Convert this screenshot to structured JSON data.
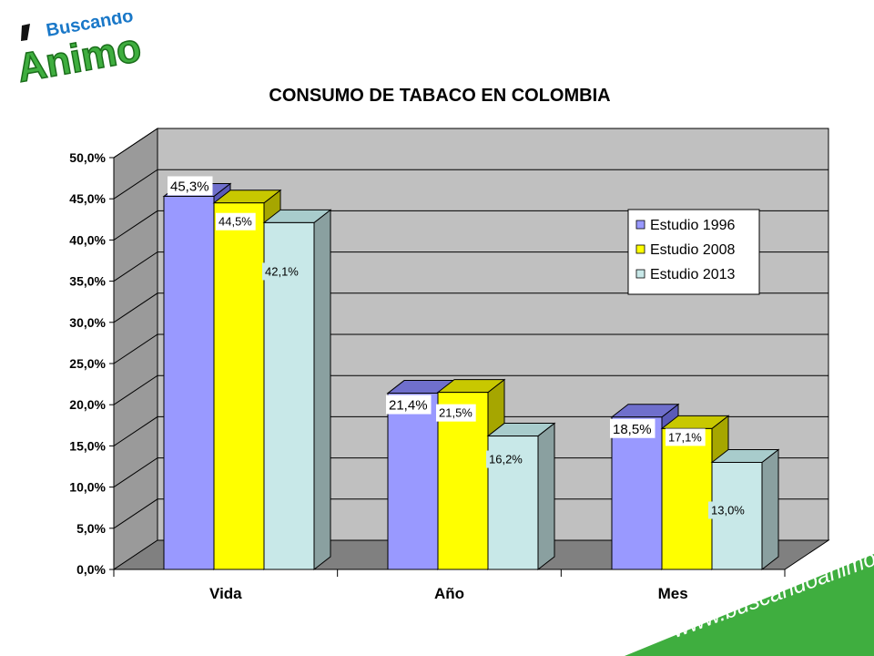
{
  "logo": {
    "line1": "Buscando",
    "line2": "Animo"
  },
  "website": "www.buscandoanimo.org",
  "colors": {
    "series": [
      "#9999ff",
      "#ffff00",
      "#c8e8e8"
    ],
    "series_top": [
      "#6f6fcc",
      "#c8c800",
      "#a8cccc"
    ],
    "series_side": [
      "#5a5ab8",
      "#a6a600",
      "#8aa0a0"
    ],
    "green": "#3fae3f",
    "dark_green": "#1b6e1b",
    "blue": "#1a78c8"
  },
  "chart_data": {
    "type": "bar",
    "title": "CONSUMO DE TABACO EN COLOMBIA",
    "categories": [
      "Vida",
      "Año",
      "Mes"
    ],
    "series": [
      {
        "name": "Estudio 1996",
        "values": [
          45.3,
          21.4,
          18.5
        ],
        "labels": [
          "45,3%",
          "21,4%",
          "18,5%"
        ]
      },
      {
        "name": "Estudio 2008",
        "values": [
          44.5,
          21.5,
          17.1
        ],
        "labels": [
          "44,5%",
          "21,5%",
          "17,1%"
        ]
      },
      {
        "name": "Estudio 2013",
        "values": [
          42.1,
          16.2,
          13.0
        ],
        "labels": [
          "42,1%",
          "16,2%",
          "13,0%"
        ]
      }
    ],
    "yticks": [
      "0,0%",
      "5,0%",
      "10,0%",
      "15,0%",
      "20,0%",
      "25,0%",
      "30,0%",
      "35,0%",
      "40,0%",
      "45,0%",
      "50,0%"
    ],
    "ylim": [
      0,
      50
    ],
    "legend_position": "right",
    "grid": true,
    "three_d": true
  }
}
